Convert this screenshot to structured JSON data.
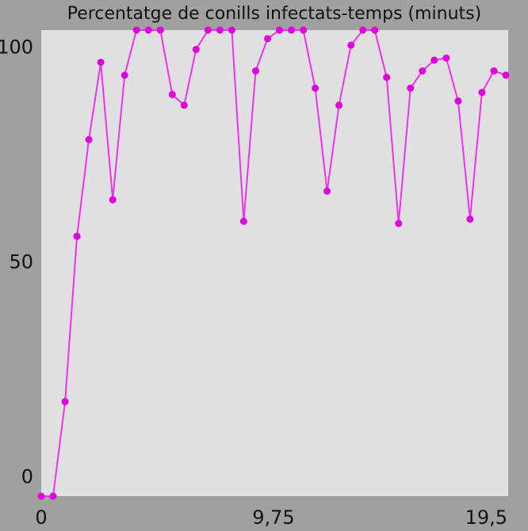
{
  "chart_data": {
    "type": "line",
    "title": "Percentatge de conills infectats-temps (minuts)",
    "xlabel": "",
    "ylabel": "",
    "x_ticks": [
      {
        "value": 0,
        "label": "0"
      },
      {
        "value": 9.75,
        "label": "9,75"
      },
      {
        "value": 19.5,
        "label": "19,5"
      }
    ],
    "y_ticks": [
      {
        "value": 0,
        "label": "0"
      },
      {
        "value": 50,
        "label": "50"
      },
      {
        "value": 100,
        "label": "100"
      }
    ],
    "xlim": [
      0,
      19.6
    ],
    "ylim": [
      -4.5,
      104
    ],
    "grid": false,
    "colors": {
      "background": "#a0a0a0",
      "plot_area": "#e0e0e0",
      "series": "#ee33ee",
      "marker": "#dd00dd",
      "text": "#111111"
    },
    "series": [
      {
        "name": "",
        "x": [
          0,
          0.5,
          1,
          1.5,
          2,
          2.5,
          3,
          3.5,
          4,
          4.5,
          5,
          5.5,
          6,
          6.5,
          7,
          7.5,
          8,
          8.5,
          9,
          9.5,
          10,
          10.5,
          11,
          11.5,
          12,
          12.5,
          13,
          13.5,
          14,
          14.5,
          15,
          15.5,
          16,
          16.5,
          17,
          17.5,
          18,
          18.5,
          19,
          19.5
        ],
        "values": [
          -4.5,
          -4.5,
          17.5,
          56,
          78.5,
          96.5,
          64.5,
          93.5,
          104,
          104,
          104,
          89,
          86.5,
          99.5,
          104,
          104,
          104,
          59.5,
          94.5,
          102,
          104,
          104,
          104,
          90.5,
          66.5,
          86.5,
          100.5,
          104,
          104,
          93,
          59,
          90.5,
          94.5,
          97,
          97.5,
          87.5,
          60,
          89.5,
          94.5,
          93.5
        ]
      }
    ]
  }
}
